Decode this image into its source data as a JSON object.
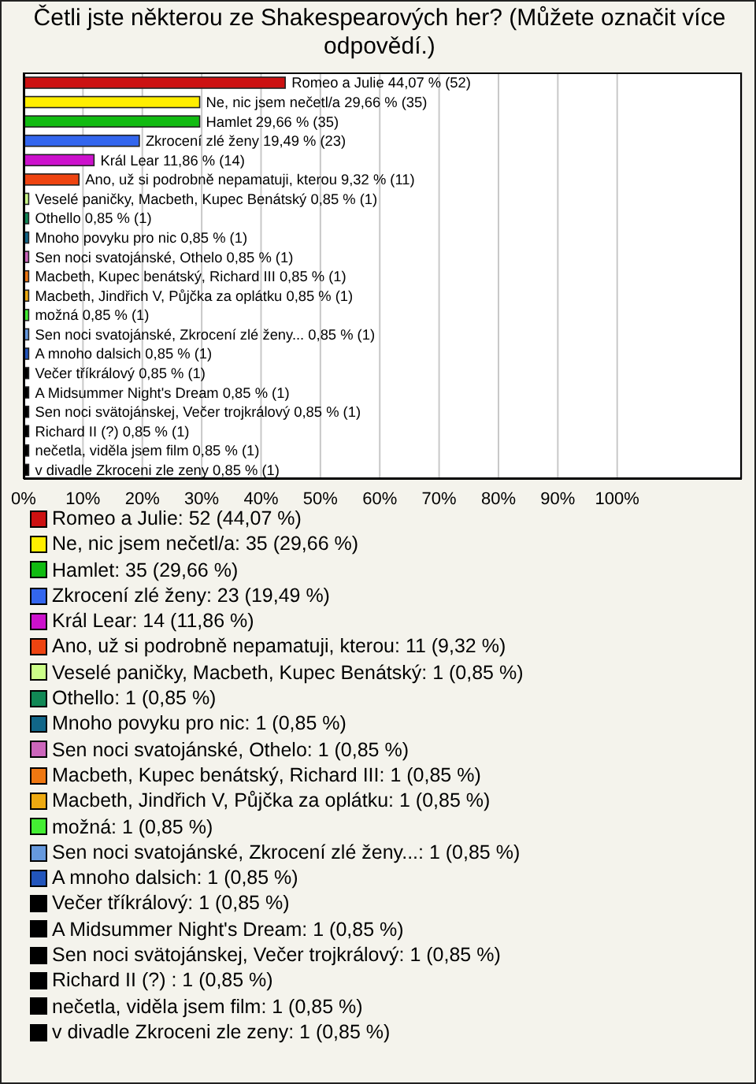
{
  "chart_data": {
    "type": "bar",
    "orientation": "horizontal",
    "stacked": true,
    "title": "Četli jste některou ze Shakespearových her? (Můžete označit více odpovědí.)",
    "categories": [
      null,
      null,
      null,
      null,
      null,
      null,
      null,
      null,
      null,
      null,
      null,
      null,
      null,
      null,
      null,
      null,
      null,
      null,
      null,
      null,
      null
    ],
    "series": [
      {
        "name": "Romeo a Julie: 52 (44,07 %)",
        "color": "#cc1111",
        "values": [
          44.07,
          null,
          null,
          null,
          null,
          null,
          null,
          null,
          null,
          null,
          null,
          null,
          null,
          null,
          null,
          null,
          null,
          null,
          null,
          null,
          null
        ],
        "value_labels": [
          "Romeo a Julie 44,07 % (52)",
          null,
          null,
          null,
          null,
          null,
          null,
          null,
          null,
          null,
          null,
          null,
          null,
          null,
          null,
          null,
          null,
          null,
          null,
          null,
          null
        ]
      },
      {
        "name": "Ne, nic jsem nečetl/a: 35 (29,66 %)",
        "color": "#ffee00",
        "values": [
          null,
          29.66,
          null,
          null,
          null,
          null,
          null,
          null,
          null,
          null,
          null,
          null,
          null,
          null,
          null,
          null,
          null,
          null,
          null,
          null,
          null
        ],
        "value_labels": [
          null,
          "Ne, nic jsem nečetl/a 29,66 % (35)",
          null,
          null,
          null,
          null,
          null,
          null,
          null,
          null,
          null,
          null,
          null,
          null,
          null,
          null,
          null,
          null,
          null,
          null,
          null
        ]
      },
      {
        "name": "Hamlet: 35 (29,66 %)",
        "color": "#11bb11",
        "values": [
          null,
          null,
          29.66,
          null,
          null,
          null,
          null,
          null,
          null,
          null,
          null,
          null,
          null,
          null,
          null,
          null,
          null,
          null,
          null,
          null,
          null
        ],
        "value_labels": [
          null,
          null,
          "Hamlet 29,66 % (35)",
          null,
          null,
          null,
          null,
          null,
          null,
          null,
          null,
          null,
          null,
          null,
          null,
          null,
          null,
          null,
          null,
          null,
          null
        ]
      },
      {
        "name": "Zkrocení zlé ženy: 23 (19,49 %)",
        "color": "#3366ee",
        "values": [
          null,
          null,
          null,
          19.49,
          null,
          null,
          null,
          null,
          null,
          null,
          null,
          null,
          null,
          null,
          null,
          null,
          null,
          null,
          null,
          null,
          null
        ],
        "value_labels": [
          null,
          null,
          null,
          "Zkrocení zlé ženy 19,49 % (23)",
          null,
          null,
          null,
          null,
          null,
          null,
          null,
          null,
          null,
          null,
          null,
          null,
          null,
          null,
          null,
          null,
          null
        ]
      },
      {
        "name": "Král Lear: 14 (11,86 %)",
        "color": "#cc11cc",
        "values": [
          null,
          null,
          null,
          null,
          11.86,
          null,
          null,
          null,
          null,
          null,
          null,
          null,
          null,
          null,
          null,
          null,
          null,
          null,
          null,
          null,
          null
        ],
        "value_labels": [
          null,
          null,
          null,
          null,
          "Král Lear 11,86 % (14)",
          null,
          null,
          null,
          null,
          null,
          null,
          null,
          null,
          null,
          null,
          null,
          null,
          null,
          null,
          null,
          null
        ]
      },
      {
        "name": "Ano, už si podrobně nepamatuji, kterou: 11 (9,32 %)",
        "color": "#ee4411",
        "values": [
          null,
          null,
          null,
          null,
          null,
          9.32,
          null,
          null,
          null,
          null,
          null,
          null,
          null,
          null,
          null,
          null,
          null,
          null,
          null,
          null,
          null
        ],
        "value_labels": [
          null,
          null,
          null,
          null,
          null,
          "Ano, už si podrobně nepamatuji, kterou 9,32 % (11)",
          null,
          null,
          null,
          null,
          null,
          null,
          null,
          null,
          null,
          null,
          null,
          null,
          null,
          null,
          null
        ]
      },
      {
        "name": "Veselé paničky, Macbeth, Kupec Benátský: 1 (0,85 %)",
        "color": "#ccff88",
        "values": [
          null,
          null,
          null,
          null,
          null,
          null,
          0.85,
          null,
          null,
          null,
          null,
          null,
          null,
          null,
          null,
          null,
          null,
          null,
          null,
          null,
          null
        ],
        "value_labels": [
          null,
          null,
          null,
          null,
          null,
          null,
          "Veselé paničky, Macbeth, Kupec Benátský 0,85 % (1)",
          null,
          null,
          null,
          null,
          null,
          null,
          null,
          null,
          null,
          null,
          null,
          null,
          null,
          null
        ]
      },
      {
        "name": "Othello: 1 (0,85 %)",
        "color": "#118855",
        "values": [
          null,
          null,
          null,
          null,
          null,
          null,
          null,
          0.85,
          null,
          null,
          null,
          null,
          null,
          null,
          null,
          null,
          null,
          null,
          null,
          null,
          null
        ],
        "value_labels": [
          null,
          null,
          null,
          null,
          null,
          null,
          null,
          "Othello 0,85 % (1)",
          null,
          null,
          null,
          null,
          null,
          null,
          null,
          null,
          null,
          null,
          null,
          null,
          null
        ]
      },
      {
        "name": "Mnoho povyku pro nic: 1 (0,85 %)",
        "color": "#116688",
        "values": [
          null,
          null,
          null,
          null,
          null,
          null,
          null,
          null,
          0.85,
          null,
          null,
          null,
          null,
          null,
          null,
          null,
          null,
          null,
          null,
          null,
          null
        ],
        "value_labels": [
          null,
          null,
          null,
          null,
          null,
          null,
          null,
          null,
          "Mnoho povyku pro nic 0,85 % (1)",
          null,
          null,
          null,
          null,
          null,
          null,
          null,
          null,
          null,
          null,
          null,
          null
        ]
      },
      {
        "name": "Sen noci svatojánské, Othelo: 1 (0,85 %)",
        "color": "#cc66bb",
        "values": [
          null,
          null,
          null,
          null,
          null,
          null,
          null,
          null,
          null,
          0.85,
          null,
          null,
          null,
          null,
          null,
          null,
          null,
          null,
          null,
          null,
          null
        ],
        "value_labels": [
          null,
          null,
          null,
          null,
          null,
          null,
          null,
          null,
          null,
          "Sen noci svatojánské, Othelo 0,85 % (1)",
          null,
          null,
          null,
          null,
          null,
          null,
          null,
          null,
          null,
          null,
          null
        ]
      },
      {
        "name": "Macbeth, Kupec benátský, Richard III: 1 (0,85 %)",
        "color": "#ee7711",
        "values": [
          null,
          null,
          null,
          null,
          null,
          null,
          null,
          null,
          null,
          null,
          0.85,
          null,
          null,
          null,
          null,
          null,
          null,
          null,
          null,
          null,
          null
        ],
        "value_labels": [
          null,
          null,
          null,
          null,
          null,
          null,
          null,
          null,
          null,
          null,
          "Macbeth, Kupec benátský, Richard III 0,85 % (1)",
          null,
          null,
          null,
          null,
          null,
          null,
          null,
          null,
          null,
          null
        ]
      },
      {
        "name": "Macbeth, Jindřich V, Půjčka za oplátku: 1 (0,85 %)",
        "color": "#eeaa11",
        "values": [
          null,
          null,
          null,
          null,
          null,
          null,
          null,
          null,
          null,
          null,
          null,
          0.85,
          null,
          null,
          null,
          null,
          null,
          null,
          null,
          null,
          null
        ],
        "value_labels": [
          null,
          null,
          null,
          null,
          null,
          null,
          null,
          null,
          null,
          null,
          null,
          "Macbeth, Jindřich V, Půjčka za oplátku 0,85 % (1)",
          null,
          null,
          null,
          null,
          null,
          null,
          null,
          null,
          null
        ]
      },
      {
        "name": "možná: 1 (0,85 %)",
        "color": "#44ee33",
        "values": [
          null,
          null,
          null,
          null,
          null,
          null,
          null,
          null,
          null,
          null,
          null,
          null,
          0.85,
          null,
          null,
          null,
          null,
          null,
          null,
          null,
          null
        ],
        "value_labels": [
          null,
          null,
          null,
          null,
          null,
          null,
          null,
          null,
          null,
          null,
          null,
          null,
          "možná 0,85 % (1)",
          null,
          null,
          null,
          null,
          null,
          null,
          null,
          null
        ]
      },
      {
        "name": "Sen noci svatojánské, Zkrocení zlé ženy...: 1 (0,85 %)",
        "color": "#6699dd",
        "values": [
          null,
          null,
          null,
          null,
          null,
          null,
          null,
          null,
          null,
          null,
          null,
          null,
          null,
          0.85,
          null,
          null,
          null,
          null,
          null,
          null,
          null
        ],
        "value_labels": [
          null,
          null,
          null,
          null,
          null,
          null,
          null,
          null,
          null,
          null,
          null,
          null,
          null,
          "Sen noci svatojánské, Zkrocení zlé ženy... 0,85 % (1)",
          null,
          null,
          null,
          null,
          null,
          null,
          null
        ]
      },
      {
        "name": "A mnoho dalsich: 1 (0,85 %)",
        "color": "#2255bb",
        "values": [
          null,
          null,
          null,
          null,
          null,
          null,
          null,
          null,
          null,
          null,
          null,
          null,
          null,
          null,
          0.85,
          null,
          null,
          null,
          null,
          null,
          null
        ],
        "value_labels": [
          null,
          null,
          null,
          null,
          null,
          null,
          null,
          null,
          null,
          null,
          null,
          null,
          null,
          null,
          "A mnoho dalsich 0,85 % (1)",
          null,
          null,
          null,
          null,
          null,
          null
        ]
      },
      {
        "name": "Večer tříkrálový: 1 (0,85 %)",
        "color": "#000000",
        "values": [
          null,
          null,
          null,
          null,
          null,
          null,
          null,
          null,
          null,
          null,
          null,
          null,
          null,
          null,
          null,
          0.85,
          null,
          null,
          null,
          null,
          null
        ],
        "value_labels": [
          null,
          null,
          null,
          null,
          null,
          null,
          null,
          null,
          null,
          null,
          null,
          null,
          null,
          null,
          null,
          "Večer tříkrálový 0,85 % (1)",
          null,
          null,
          null,
          null,
          null
        ]
      },
      {
        "name": "A Midsummer Night's Dream: 1 (0,85 %)",
        "color": "#000000",
        "values": [
          null,
          null,
          null,
          null,
          null,
          null,
          null,
          null,
          null,
          null,
          null,
          null,
          null,
          null,
          null,
          null,
          0.85,
          null,
          null,
          null,
          null
        ],
        "value_labels": [
          null,
          null,
          null,
          null,
          null,
          null,
          null,
          null,
          null,
          null,
          null,
          null,
          null,
          null,
          null,
          null,
          "A Midsummer Night's Dream  0,85 % (1)",
          null,
          null,
          null,
          null
        ]
      },
      {
        "name": "Sen noci svätojánskej, Večer trojkrálový: 1 (0,85 %)",
        "color": "#000000",
        "values": [
          null,
          null,
          null,
          null,
          null,
          null,
          null,
          null,
          null,
          null,
          null,
          null,
          null,
          null,
          null,
          null,
          null,
          0.85,
          null,
          null,
          null
        ],
        "value_labels": [
          null,
          null,
          null,
          null,
          null,
          null,
          null,
          null,
          null,
          null,
          null,
          null,
          null,
          null,
          null,
          null,
          null,
          "Sen noci svätojánskej, Večer trojkrálový 0,85 % (1)",
          null,
          null,
          null
        ]
      },
      {
        "name": "Richard II (?) : 1 (0,85 %)",
        "color": "#000000",
        "values": [
          null,
          null,
          null,
          null,
          null,
          null,
          null,
          null,
          null,
          null,
          null,
          null,
          null,
          null,
          null,
          null,
          null,
          null,
          0.85,
          null,
          null
        ],
        "value_labels": [
          null,
          null,
          null,
          null,
          null,
          null,
          null,
          null,
          null,
          null,
          null,
          null,
          null,
          null,
          null,
          null,
          null,
          null,
          "Richard II (?)  0,85 % (1)",
          null,
          null
        ]
      },
      {
        "name": "nečetla, viděla jsem film: 1 (0,85 %)",
        "color": "#000000",
        "values": [
          null,
          null,
          null,
          null,
          null,
          null,
          null,
          null,
          null,
          null,
          null,
          null,
          null,
          null,
          null,
          null,
          null,
          null,
          null,
          0.85,
          null
        ],
        "value_labels": [
          null,
          null,
          null,
          null,
          null,
          null,
          null,
          null,
          null,
          null,
          null,
          null,
          null,
          null,
          null,
          null,
          null,
          null,
          null,
          "nečetla, viděla jsem film 0,85 % (1)",
          null
        ]
      },
      {
        "name": "v divadle Zkroceni zle zeny: 1 (0,85 %)",
        "color": "#000000",
        "values": [
          null,
          null,
          null,
          null,
          null,
          null,
          null,
          null,
          null,
          null,
          null,
          null,
          null,
          null,
          null,
          null,
          null,
          null,
          null,
          null,
          0.85
        ],
        "value_labels": [
          null,
          null,
          null,
          null,
          null,
          null,
          null,
          null,
          null,
          null,
          null,
          null,
          null,
          null,
          null,
          null,
          null,
          null,
          null,
          null,
          "v divadle Zkroceni zle zeny 0,85 % (1)"
        ]
      }
    ],
    "xlim": [
      0,
      121
    ],
    "xticks": [
      {
        "value": 0,
        "label": "0%"
      },
      {
        "value": 10,
        "label": "10%"
      },
      {
        "value": 20,
        "label": "20%"
      },
      {
        "value": 30,
        "label": "30%"
      },
      {
        "value": 40,
        "label": "40%"
      },
      {
        "value": 50,
        "label": "50%"
      },
      {
        "value": 60,
        "label": "60%"
      },
      {
        "value": 70,
        "label": "70%"
      },
      {
        "value": 80,
        "label": "80%"
      },
      {
        "value": 90,
        "label": "90%"
      },
      {
        "value": 100,
        "label": "100%"
      }
    ],
    "grid": "x",
    "legend": "bottom",
    "tick_labels": "x"
  }
}
